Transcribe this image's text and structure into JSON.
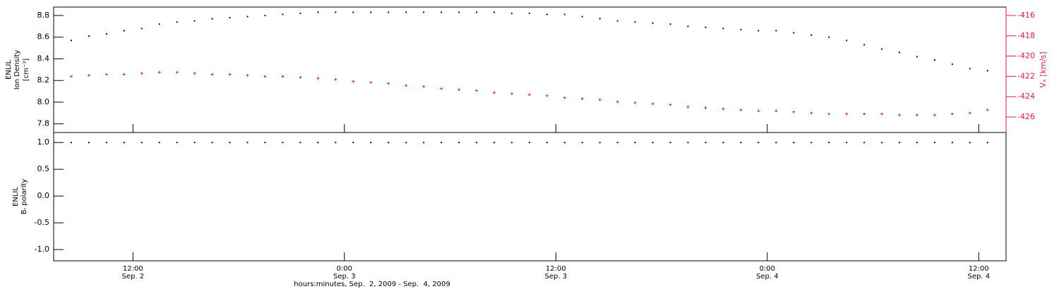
{
  "chart_data": [
    {
      "type": "scatter",
      "ylabel": [
        "ENLIL",
        "Ion Density",
        "[cm⁻³]"
      ],
      "y2label": "Vₓ [km/s]",
      "xlim": [
        7.5,
        61.55
      ],
      "ylim": [
        7.72,
        8.878
      ],
      "yticks": [
        7.8,
        {
          "value": 8,
          "label": "8.0"
        },
        8.2,
        8.4,
        8.6,
        8.8
      ],
      "y2lim": [
        -427.53,
        -415.17
      ],
      "y2ticks": [
        -426,
        -424,
        -422,
        -420,
        -418,
        -416
      ],
      "y2color": "#e8174a",
      "x": [
        8.5,
        9.5,
        10.5,
        11.5,
        12.5,
        13.5,
        14.5,
        15.5,
        16.5,
        17.5,
        18.5,
        19.5,
        20.5,
        21.5,
        22.5,
        23.5,
        24.5,
        25.5,
        26.5,
        27.5,
        28.5,
        29.5,
        30.5,
        31.5,
        32.5,
        33.5,
        34.5,
        35.5,
        36.5,
        37.5,
        38.5,
        39.5,
        40.5,
        41.5,
        42.5,
        43.5,
        44.5,
        45.5,
        46.5,
        47.5,
        48.5,
        49.5,
        50.5,
        51.5,
        52.5,
        53.5,
        54.5,
        55.5,
        56.5,
        57.5,
        58.5,
        59.5,
        60.5
      ],
      "series": [
        {
          "color": "#000000",
          "marker": "dot",
          "values": [
            8.57,
            8.61,
            8.63,
            8.66,
            8.68,
            8.72,
            8.74,
            8.75,
            8.77,
            8.78,
            8.79,
            8.8,
            8.81,
            8.82,
            8.83,
            8.83,
            8.83,
            8.83,
            8.83,
            8.83,
            8.83,
            8.83,
            8.83,
            8.83,
            8.83,
            8.82,
            8.82,
            8.81,
            8.81,
            8.79,
            8.77,
            8.75,
            8.74,
            8.73,
            8.72,
            8.7,
            8.69,
            8.68,
            8.67,
            8.66,
            8.66,
            8.64,
            8.62,
            8.6,
            8.57,
            8.53,
            8.49,
            8.46,
            8.42,
            8.39,
            8.35,
            8.31,
            8.29
          ]
        },
        {
          "color": "#e8174a",
          "marker": "plus",
          "axis": "y2",
          "values": [
            -422.0,
            -421.9,
            -421.8,
            -421.8,
            -421.7,
            -421.6,
            -421.6,
            -421.7,
            -421.8,
            -421.8,
            -421.9,
            -422.0,
            -422.0,
            -422.1,
            -422.2,
            -422.3,
            -422.5,
            -422.6,
            -422.7,
            -422.9,
            -423.0,
            -423.2,
            -423.3,
            -423.4,
            -423.6,
            -423.7,
            -423.8,
            -423.9,
            -424.1,
            -424.2,
            -424.3,
            -424.5,
            -424.6,
            -424.7,
            -424.8,
            -425.0,
            -425.1,
            -425.2,
            -425.3,
            -425.4,
            -425.4,
            -425.5,
            -425.6,
            -425.7,
            -425.7,
            -425.7,
            -425.7,
            -425.8,
            -425.8,
            -425.8,
            -425.7,
            -425.6,
            -425.3
          ]
        }
      ]
    },
    {
      "type": "scatter",
      "ylabel": [
        "ENLIL",
        "Bᵣ polarity"
      ],
      "xlabel": "hours:minutes, Sep.  2, 2009 - Sep.  4, 2009",
      "xlim": [
        7.5,
        61.55
      ],
      "xticks": [
        {
          "value": 12,
          "label": "12:00",
          "date": "Sep. 2"
        },
        {
          "value": 24,
          "label": "0:00",
          "date": "Sep. 3"
        },
        {
          "value": 36,
          "label": "12:00",
          "date": "Sep. 3"
        },
        {
          "value": 48,
          "label": "0:00",
          "date": "Sep. 4"
        },
        {
          "value": 60,
          "label": "12:00",
          "date": "Sep. 4"
        }
      ],
      "ylim": [
        -1.21,
        1.187
      ],
      "yticks": [
        {
          "value": -1,
          "label": "-1.0"
        },
        -0.5,
        {
          "value": 0,
          "label": "0.0"
        },
        0.5,
        {
          "value": 1,
          "label": "1.0"
        }
      ],
      "x": [
        8.5,
        9.5,
        10.5,
        11.5,
        12.5,
        13.5,
        14.5,
        15.5,
        16.5,
        17.5,
        18.5,
        19.5,
        20.5,
        21.5,
        22.5,
        23.5,
        24.5,
        25.5,
        26.5,
        27.5,
        28.5,
        29.5,
        30.5,
        31.5,
        32.5,
        33.5,
        34.5,
        35.5,
        36.5,
        37.5,
        38.5,
        39.5,
        40.5,
        41.5,
        42.5,
        43.5,
        44.5,
        45.5,
        46.5,
        47.5,
        48.5,
        49.5,
        50.5,
        51.5,
        52.5,
        53.5,
        54.5,
        55.5,
        56.5,
        57.5,
        58.5,
        59.5,
        60.5
      ],
      "series": [
        {
          "color": "#000000",
          "marker": "dot",
          "values": [
            1,
            1,
            1,
            1,
            1,
            1,
            1,
            1,
            1,
            1,
            1,
            1,
            1,
            1,
            1,
            1,
            1,
            1,
            1,
            1,
            1,
            1,
            1,
            1,
            1,
            1,
            1,
            1,
            1,
            1,
            1,
            1,
            1,
            1,
            1,
            1,
            1,
            1,
            1,
            1,
            1,
            1,
            1,
            1,
            1,
            1,
            1,
            1,
            1,
            1,
            1,
            1,
            1
          ]
        }
      ]
    }
  ]
}
